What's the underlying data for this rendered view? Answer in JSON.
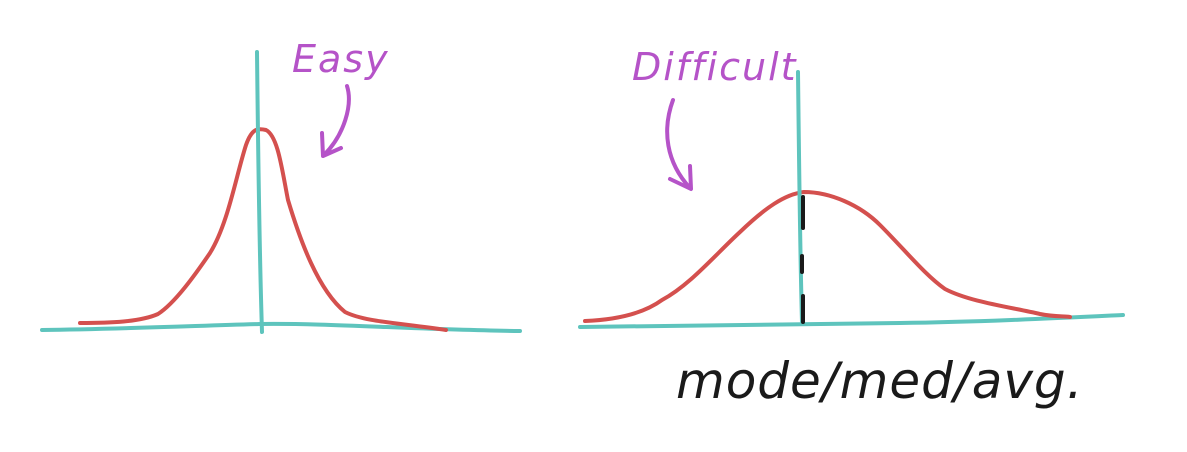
{
  "diagram": {
    "panels": [
      {
        "id": "easy",
        "label": "Easy",
        "distribution": "narrow-peaked"
      },
      {
        "id": "difficult",
        "label": "Difficult",
        "distribution": "wide-flat"
      }
    ],
    "center_label": "mode/med/avg.",
    "colors": {
      "curve": "#d4504e",
      "axis": "#5ec4bd",
      "label": "#b553c8",
      "text": "#1a1a1a",
      "dashed_line": "#1a1a1a"
    },
    "icons": {
      "arrow_easy": "curved-arrow-icon",
      "arrow_difficult": "curved-arrow-icon"
    }
  }
}
